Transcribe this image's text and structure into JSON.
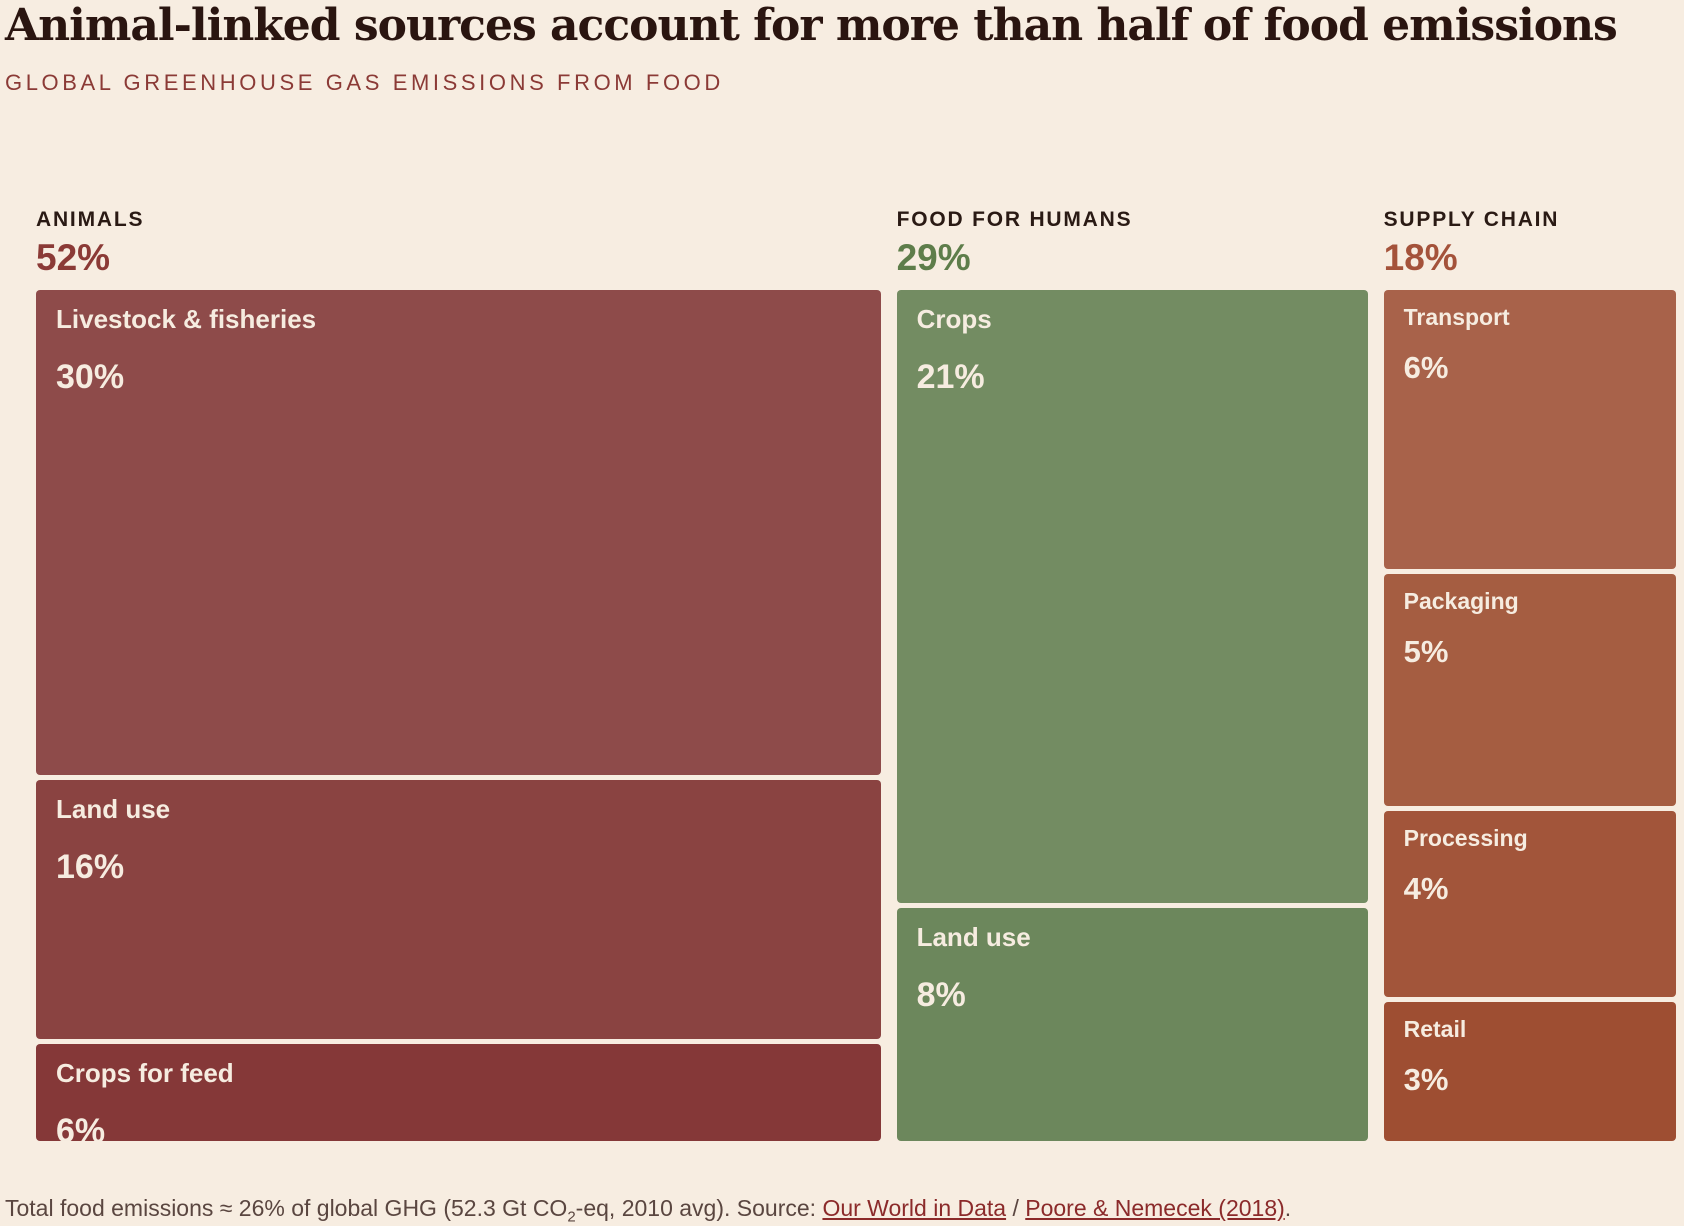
{
  "title": "Animal-linked sources account for more than half of food emissions",
  "subtitle": "GLOBAL GREENHOUSE GAS EMISSIONS FROM FOOD",
  "footnote": {
    "text_before_sub": "Total food emissions ≈ 26% of global GHG (52.3 Gt CO",
    "sub": "2",
    "text_after_sub": "-eq, 2010 avg). Source: ",
    "link1": "Our World in Data",
    "separator": " / ",
    "link2": "Poore & Nemecek (2018)",
    "end": "."
  },
  "chart_data": {
    "type": "treemap",
    "unit": "%",
    "groups": [
      {
        "name": "ANIMALS",
        "total": 52,
        "color": "#8b3a36",
        "items": [
          {
            "label": "Livestock & fisheries",
            "value": 30,
            "color": "#8e4b4a"
          },
          {
            "label": "Land use",
            "value": 16,
            "color": "#8a4341"
          },
          {
            "label": "Crops for feed",
            "value": 6,
            "color": "#853838"
          }
        ]
      },
      {
        "name": "FOOD FOR HUMANS",
        "total": 29,
        "color": "#5e7d4a",
        "items": [
          {
            "label": "Crops",
            "value": 21,
            "color": "#738c62"
          },
          {
            "label": "Land use",
            "value": 8,
            "color": "#6c875c"
          }
        ]
      },
      {
        "name": "SUPPLY CHAIN",
        "total": 18,
        "color": "#a4523a",
        "items": [
          {
            "label": "Transport",
            "value": 6,
            "color": "#a8624a"
          },
          {
            "label": "Packaging",
            "value": 5,
            "color": "#a55d41"
          },
          {
            "label": "Processing",
            "value": 4,
            "color": "#a2553a"
          },
          {
            "label": "Retail",
            "value": 3,
            "color": "#9e4e32"
          }
        ]
      }
    ]
  }
}
